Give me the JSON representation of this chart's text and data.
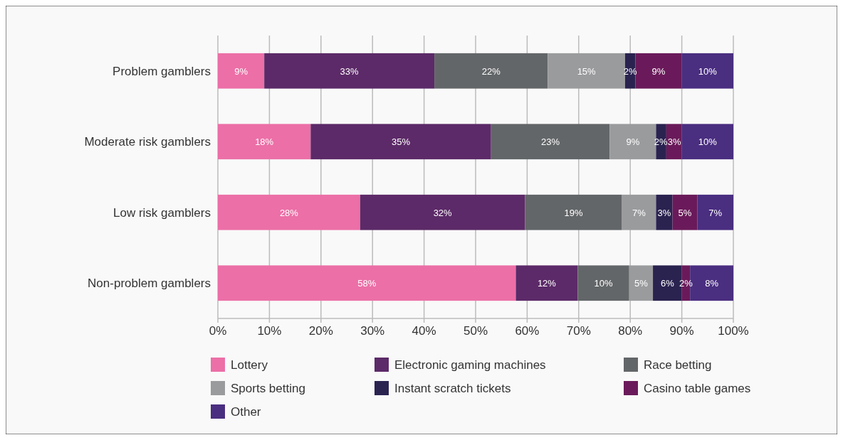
{
  "chart_data": {
    "type": "bar",
    "orientation": "horizontal",
    "stacked": true,
    "categories": [
      "Problem gamblers",
      "Moderate risk gamblers",
      "Low risk gamblers",
      "Non-problem gamblers"
    ],
    "series": [
      {
        "name": "Lottery",
        "color": "#ec6fa7",
        "values": [
          9,
          18,
          27.6,
          57.8
        ],
        "value_labels": [
          "9%",
          "18%",
          "28%",
          "58%"
        ]
      },
      {
        "name": "Electronic gaming machines",
        "color": "#5c2a68",
        "values": [
          33,
          35,
          32,
          12
        ],
        "value_labels": [
          "33%",
          "35%",
          "32%",
          "12%"
        ]
      },
      {
        "name": "Race betting",
        "color": "#636668",
        "values": [
          22,
          23,
          18.8,
          10
        ],
        "value_labels": [
          "22%",
          "23%",
          "19%",
          "10%"
        ]
      },
      {
        "name": "Sports betting",
        "color": "#9a9b9d",
        "values": [
          15,
          9,
          6.6,
          4.6
        ],
        "value_labels": [
          "15%",
          "9%",
          "7%",
          "5%"
        ]
      },
      {
        "name": "Instant scratch tickets",
        "color": "#2a2350",
        "values": [
          2,
          2,
          3.2,
          5.6
        ],
        "value_labels": [
          "2%",
          "2%",
          "3%",
          "6%"
        ]
      },
      {
        "name": "Casino table games",
        "color": "#6a1a5a",
        "values": [
          9,
          3,
          4.8,
          1.6
        ],
        "value_labels": [
          "9%",
          "3%",
          "5%",
          "2%"
        ]
      },
      {
        "name": "Other",
        "color": "#4a2e80",
        "values": [
          10,
          10,
          7,
          8.4
        ],
        "value_labels": [
          "10%",
          "10%",
          "7%",
          "8%"
        ]
      }
    ],
    "xlim": [
      0,
      100
    ],
    "xticks": [
      {
        "value": 0,
        "label": "0%"
      },
      {
        "value": 10,
        "label": "10%"
      },
      {
        "value": 20,
        "label": "20%"
      },
      {
        "value": 30,
        "label": "30%"
      },
      {
        "value": 40,
        "label": "40%"
      },
      {
        "value": 50,
        "label": "50%"
      },
      {
        "value": 60,
        "label": "60%"
      },
      {
        "value": 70,
        "label": "70%"
      },
      {
        "value": 80,
        "label": "80%"
      },
      {
        "value": 90,
        "label": "90%"
      },
      {
        "value": 100,
        "label": "100%"
      }
    ],
    "grid": "x",
    "legend": "bottom"
  }
}
